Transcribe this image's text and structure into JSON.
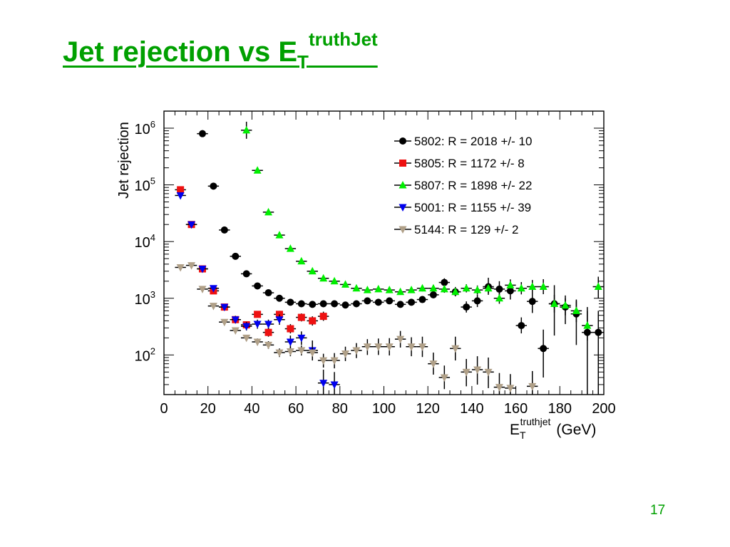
{
  "slide": {
    "title_main": "Jet rejection vs E",
    "title_sub": "T",
    "title_sup": "truthJet",
    "page_number": "17"
  },
  "chart_data": {
    "type": "scatter",
    "xlabel": "E_T^truthjet (GeV)",
    "xlabel_main": "E",
    "xlabel_sub": "T",
    "xlabel_sup": "truthjet",
    "xlabel_unit": "(GeV)",
    "ylabel": "Jet rejection",
    "xlim": [
      0,
      200
    ],
    "ylim": [
      20,
      2000000
    ],
    "yscale": "log",
    "grid": false,
    "legend_position": "top-right",
    "x_ticks": [
      0,
      20,
      40,
      60,
      80,
      100,
      120,
      140,
      160,
      180,
      200
    ],
    "y_ticks": [
      {
        "base": "10",
        "exp": "2",
        "value": 100
      },
      {
        "base": "10",
        "exp": "3",
        "value": 1000
      },
      {
        "base": "10",
        "exp": "4",
        "value": 10000
      },
      {
        "base": "10",
        "exp": "5",
        "value": 100000
      },
      {
        "base": "10",
        "exp": "6",
        "value": 1000000
      }
    ],
    "series": [
      {
        "name": "5802: R = 2018 +/- 10",
        "marker": "circle",
        "color": "#000000",
        "points": [
          {
            "x": 17.5,
            "y": 800000,
            "lo": 700000,
            "hi": 920000
          },
          {
            "x": 22.5,
            "y": 95000,
            "lo": 88000,
            "hi": 103000
          },
          {
            "x": 27.5,
            "y": 16000,
            "lo": 14800,
            "hi": 17200
          },
          {
            "x": 32.5,
            "y": 5500,
            "lo": 5100,
            "hi": 5900
          },
          {
            "x": 37.5,
            "y": 2700,
            "lo": 2500,
            "hi": 2900
          },
          {
            "x": 42.5,
            "y": 1650,
            "lo": 1550,
            "hi": 1760
          },
          {
            "x": 47.5,
            "y": 1250,
            "lo": 1170,
            "hi": 1340
          },
          {
            "x": 52.5,
            "y": 1000,
            "lo": 930,
            "hi": 1080
          },
          {
            "x": 57.5,
            "y": 850,
            "lo": 790,
            "hi": 920
          },
          {
            "x": 62.5,
            "y": 800,
            "lo": 740,
            "hi": 870
          },
          {
            "x": 67.5,
            "y": 780,
            "lo": 720,
            "hi": 850
          },
          {
            "x": 72.5,
            "y": 800,
            "lo": 730,
            "hi": 880
          },
          {
            "x": 77.5,
            "y": 800,
            "lo": 730,
            "hi": 880
          },
          {
            "x": 82.5,
            "y": 760,
            "lo": 690,
            "hi": 840
          },
          {
            "x": 87.5,
            "y": 800,
            "lo": 720,
            "hi": 890
          },
          {
            "x": 92.5,
            "y": 900,
            "lo": 810,
            "hi": 1000
          },
          {
            "x": 97.5,
            "y": 850,
            "lo": 760,
            "hi": 950
          },
          {
            "x": 102.5,
            "y": 900,
            "lo": 800,
            "hi": 1010
          },
          {
            "x": 107.5,
            "y": 780,
            "lo": 690,
            "hi": 880
          },
          {
            "x": 112.5,
            "y": 850,
            "lo": 750,
            "hi": 970
          },
          {
            "x": 117.5,
            "y": 950,
            "lo": 830,
            "hi": 1090
          },
          {
            "x": 122.5,
            "y": 1150,
            "lo": 1000,
            "hi": 1330
          },
          {
            "x": 127.5,
            "y": 1900,
            "lo": 1600,
            "hi": 2250
          },
          {
            "x": 132.5,
            "y": 1300,
            "lo": 1080,
            "hi": 1580
          },
          {
            "x": 137.5,
            "y": 700,
            "lo": 560,
            "hi": 880
          },
          {
            "x": 142.5,
            "y": 900,
            "lo": 700,
            "hi": 1160
          },
          {
            "x": 147.5,
            "y": 1600,
            "lo": 1150,
            "hi": 2300
          },
          {
            "x": 152.5,
            "y": 1450,
            "lo": 1050,
            "hi": 2000
          },
          {
            "x": 157.5,
            "y": 1350,
            "lo": 950,
            "hi": 1950
          },
          {
            "x": 162.5,
            "y": 330,
            "lo": 240,
            "hi": 460
          },
          {
            "x": 167.5,
            "y": 880,
            "lo": 550,
            "hi": 1450
          },
          {
            "x": 172.5,
            "y": 130,
            "lo": 40,
            "hi": 280
          },
          {
            "x": 177.5,
            "y": 800,
            "lo": 220,
            "hi": 1700
          },
          {
            "x": 182.5,
            "y": 700,
            "lo": 350,
            "hi": 1000
          },
          {
            "x": 187.5,
            "y": 530,
            "lo": 150,
            "hi": 900
          },
          {
            "x": 192.5,
            "y": 250,
            "lo": 20,
            "hi": 700
          },
          {
            "x": 197.5,
            "y": 250,
            "lo": 20,
            "hi": 600
          }
        ]
      },
      {
        "name": "5805: R = 1172 +/- 8",
        "marker": "square",
        "color": "#ee1111",
        "points": [
          {
            "x": 7.5,
            "y": 82000,
            "lo": 75000,
            "hi": 90000
          },
          {
            "x": 12.5,
            "y": 20000,
            "lo": 18500,
            "hi": 21500
          },
          {
            "x": 17.5,
            "y": 3300,
            "lo": 3050,
            "hi": 3550
          },
          {
            "x": 22.5,
            "y": 1350,
            "lo": 1250,
            "hi": 1460
          },
          {
            "x": 27.5,
            "y": 700,
            "lo": 640,
            "hi": 760
          },
          {
            "x": 32.5,
            "y": 420,
            "lo": 380,
            "hi": 460
          },
          {
            "x": 37.5,
            "y": 340,
            "lo": 300,
            "hi": 380
          },
          {
            "x": 42.5,
            "y": 520,
            "lo": 460,
            "hi": 590
          },
          {
            "x": 47.5,
            "y": 250,
            "lo": 210,
            "hi": 300
          },
          {
            "x": 52.5,
            "y": 520,
            "lo": 450,
            "hi": 600
          },
          {
            "x": 57.5,
            "y": 290,
            "lo": 240,
            "hi": 350
          },
          {
            "x": 62.5,
            "y": 460,
            "lo": 390,
            "hi": 540
          },
          {
            "x": 67.5,
            "y": 400,
            "lo": 330,
            "hi": 480
          },
          {
            "x": 72.5,
            "y": 480,
            "lo": 400,
            "hi": 580
          }
        ]
      },
      {
        "name": "5807: R = 1898 +/- 22",
        "marker": "triangle-up",
        "color": "#00ee00",
        "points": [
          {
            "x": 37.5,
            "y": 920000,
            "lo": 650000,
            "hi": 1300000
          },
          {
            "x": 42.5,
            "y": 180000,
            "lo": 165000,
            "hi": 196000
          },
          {
            "x": 47.5,
            "y": 33000,
            "lo": 30500,
            "hi": 35500
          },
          {
            "x": 52.5,
            "y": 13000,
            "lo": 12000,
            "hi": 14000
          },
          {
            "x": 57.5,
            "y": 7500,
            "lo": 6950,
            "hi": 8100
          },
          {
            "x": 62.5,
            "y": 4500,
            "lo": 4150,
            "hi": 4850
          },
          {
            "x": 67.5,
            "y": 3000,
            "lo": 2750,
            "hi": 3250
          },
          {
            "x": 72.5,
            "y": 2250,
            "lo": 2070,
            "hi": 2440
          },
          {
            "x": 77.5,
            "y": 2000,
            "lo": 1830,
            "hi": 2180
          },
          {
            "x": 82.5,
            "y": 1750,
            "lo": 1600,
            "hi": 1910
          },
          {
            "x": 87.5,
            "y": 1500,
            "lo": 1370,
            "hi": 1640
          },
          {
            "x": 92.5,
            "y": 1400,
            "lo": 1270,
            "hi": 1540
          },
          {
            "x": 97.5,
            "y": 1450,
            "lo": 1310,
            "hi": 1600
          },
          {
            "x": 102.5,
            "y": 1400,
            "lo": 1260,
            "hi": 1550
          },
          {
            "x": 107.5,
            "y": 1300,
            "lo": 1160,
            "hi": 1460
          },
          {
            "x": 112.5,
            "y": 1400,
            "lo": 1240,
            "hi": 1580
          },
          {
            "x": 117.5,
            "y": 1500,
            "lo": 1320,
            "hi": 1700
          },
          {
            "x": 122.5,
            "y": 1500,
            "lo": 1310,
            "hi": 1720
          },
          {
            "x": 127.5,
            "y": 1450,
            "lo": 1250,
            "hi": 1680
          },
          {
            "x": 132.5,
            "y": 1300,
            "lo": 1110,
            "hi": 1520
          },
          {
            "x": 137.5,
            "y": 1500,
            "lo": 1270,
            "hi": 1770
          },
          {
            "x": 142.5,
            "y": 1400,
            "lo": 1170,
            "hi": 1680
          },
          {
            "x": 147.5,
            "y": 1500,
            "lo": 1240,
            "hi": 1820
          },
          {
            "x": 152.5,
            "y": 1000,
            "lo": 800,
            "hi": 1250
          },
          {
            "x": 157.5,
            "y": 1700,
            "lo": 1350,
            "hi": 2150
          },
          {
            "x": 162.5,
            "y": 1500,
            "lo": 1170,
            "hi": 1930
          },
          {
            "x": 167.5,
            "y": 1600,
            "lo": 1220,
            "hi": 2100
          },
          {
            "x": 172.5,
            "y": 1600,
            "lo": 1180,
            "hi": 2170
          },
          {
            "x": 177.5,
            "y": 800,
            "lo": 560,
            "hi": 1150
          },
          {
            "x": 182.5,
            "y": 750,
            "lo": 500,
            "hi": 1120
          },
          {
            "x": 187.5,
            "y": 600,
            "lo": 380,
            "hi": 950
          },
          {
            "x": 192.5,
            "y": 330,
            "lo": 180,
            "hi": 600
          },
          {
            "x": 197.5,
            "y": 1600,
            "lo": 1000,
            "hi": 2400
          }
        ]
      },
      {
        "name": "5001: R = 1155 +/- 39",
        "marker": "triangle-down",
        "color": "#0000ee",
        "points": [
          {
            "x": 7.5,
            "y": 65000,
            "lo": 57000,
            "hi": 74000
          },
          {
            "x": 12.5,
            "y": 20000,
            "lo": 18000,
            "hi": 22200
          },
          {
            "x": 17.5,
            "y": 3300,
            "lo": 3000,
            "hi": 3630
          },
          {
            "x": 22.5,
            "y": 1500,
            "lo": 1350,
            "hi": 1670
          },
          {
            "x": 27.5,
            "y": 700,
            "lo": 620,
            "hi": 790
          },
          {
            "x": 32.5,
            "y": 420,
            "lo": 360,
            "hi": 490
          },
          {
            "x": 37.5,
            "y": 320,
            "lo": 270,
            "hi": 380
          },
          {
            "x": 42.5,
            "y": 350,
            "lo": 290,
            "hi": 420
          },
          {
            "x": 47.5,
            "y": 350,
            "lo": 290,
            "hi": 420
          },
          {
            "x": 52.5,
            "y": 420,
            "lo": 340,
            "hi": 520
          },
          {
            "x": 57.5,
            "y": 170,
            "lo": 130,
            "hi": 220
          },
          {
            "x": 62.5,
            "y": 200,
            "lo": 150,
            "hi": 260
          },
          {
            "x": 67.5,
            "y": 120,
            "lo": 80,
            "hi": 180
          },
          {
            "x": 72.5,
            "y": 32,
            "lo": 20,
            "hi": 55
          },
          {
            "x": 77.5,
            "y": 30,
            "lo": 20,
            "hi": 50
          }
        ]
      },
      {
        "name": "5144: R = 129 +/- 2",
        "marker": "triangle-down",
        "color": "#b0a088",
        "points": [
          {
            "x": 7.5,
            "y": 3500,
            "lo": 3250,
            "hi": 3760
          },
          {
            "x": 12.5,
            "y": 3800,
            "lo": 3550,
            "hi": 4070
          },
          {
            "x": 17.5,
            "y": 1450,
            "lo": 1350,
            "hi": 1560
          },
          {
            "x": 22.5,
            "y": 730,
            "lo": 670,
            "hi": 790
          },
          {
            "x": 27.5,
            "y": 380,
            "lo": 345,
            "hi": 415
          },
          {
            "x": 32.5,
            "y": 270,
            "lo": 240,
            "hi": 300
          },
          {
            "x": 37.5,
            "y": 200,
            "lo": 175,
            "hi": 225
          },
          {
            "x": 42.5,
            "y": 170,
            "lo": 148,
            "hi": 195
          },
          {
            "x": 47.5,
            "y": 150,
            "lo": 128,
            "hi": 175
          },
          {
            "x": 52.5,
            "y": 110,
            "lo": 92,
            "hi": 130
          },
          {
            "x": 57.5,
            "y": 115,
            "lo": 95,
            "hi": 138
          },
          {
            "x": 62.5,
            "y": 120,
            "lo": 98,
            "hi": 146
          },
          {
            "x": 67.5,
            "y": 110,
            "lo": 88,
            "hi": 136
          },
          {
            "x": 72.5,
            "y": 80,
            "lo": 60,
            "hi": 105
          },
          {
            "x": 77.5,
            "y": 80,
            "lo": 58,
            "hi": 108
          },
          {
            "x": 82.5,
            "y": 105,
            "lo": 78,
            "hi": 140
          },
          {
            "x": 87.5,
            "y": 120,
            "lo": 88,
            "hi": 162
          },
          {
            "x": 92.5,
            "y": 140,
            "lo": 100,
            "hi": 190
          },
          {
            "x": 97.5,
            "y": 140,
            "lo": 100,
            "hi": 195
          },
          {
            "x": 102.5,
            "y": 140,
            "lo": 98,
            "hi": 198
          },
          {
            "x": 107.5,
            "y": 190,
            "lo": 135,
            "hi": 265
          },
          {
            "x": 112.5,
            "y": 140,
            "lo": 95,
            "hi": 205
          },
          {
            "x": 117.5,
            "y": 140,
            "lo": 92,
            "hi": 210
          },
          {
            "x": 122.5,
            "y": 70,
            "lo": 45,
            "hi": 110
          },
          {
            "x": 127.5,
            "y": 40,
            "lo": 25,
            "hi": 65
          },
          {
            "x": 132.5,
            "y": 130,
            "lo": 80,
            "hi": 210
          },
          {
            "x": 137.5,
            "y": 50,
            "lo": 28,
            "hi": 85
          },
          {
            "x": 142.5,
            "y": 55,
            "lo": 30,
            "hi": 95
          },
          {
            "x": 147.5,
            "y": 50,
            "lo": 26,
            "hi": 90
          },
          {
            "x": 152.5,
            "y": 27,
            "lo": 20,
            "hi": 48
          },
          {
            "x": 157.5,
            "y": 26,
            "lo": 20,
            "hi": 46
          },
          {
            "x": 167.5,
            "y": 28,
            "lo": 20,
            "hi": 52
          }
        ]
      }
    ]
  }
}
